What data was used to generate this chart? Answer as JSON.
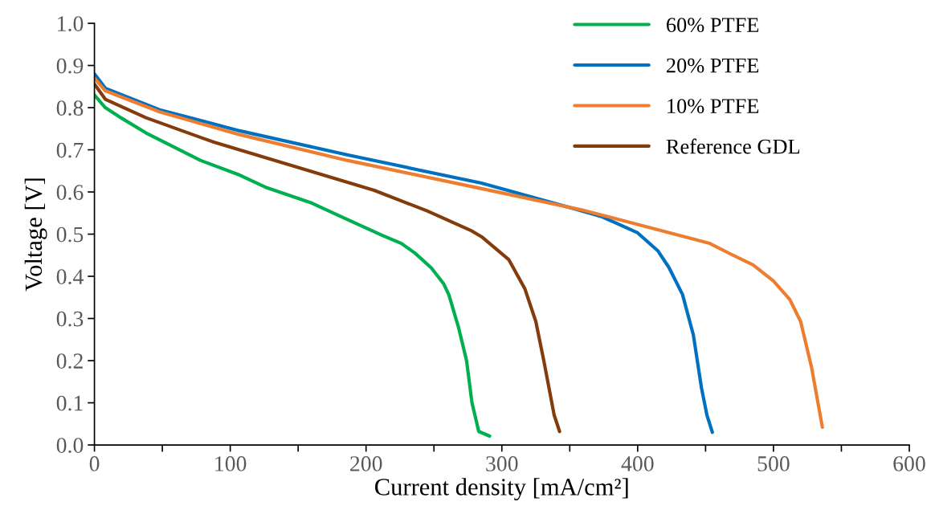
{
  "chart_data": {
    "type": "line",
    "xlabel": "Current density [mA/cm²]",
    "ylabel": "Voltage [V]",
    "xlim": [
      0,
      600
    ],
    "ylim": [
      0,
      1.0
    ],
    "xticks": [
      0,
      {
        "value": 50,
        "label": null
      },
      100,
      {
        "value": 150,
        "label": null
      },
      200,
      {
        "value": 250,
        "label": null
      },
      300,
      {
        "value": 350,
        "label": null
      },
      400,
      {
        "value": 450,
        "label": null
      },
      500,
      {
        "value": 550,
        "label": null
      },
      600
    ],
    "yticks": [
      {
        "value": 0,
        "label": "0.0"
      },
      0.1,
      0.2,
      0.3,
      0.4,
      0.5,
      0.6,
      0.7,
      0.8,
      0.9,
      {
        "value": 1.0,
        "label": "1.0"
      }
    ],
    "grid": false,
    "legend": "top right",
    "marker": "none",
    "line_style": "solid",
    "series": [
      {
        "name": "60% PTFE",
        "color": "#00b050",
        "x": [
          0,
          8,
          20,
          38,
          78,
          107,
          127,
          159,
          186,
          212,
          226,
          236,
          248,
          257,
          261,
          268,
          274,
          278,
          283,
          291
        ],
        "values": [
          0.83,
          0.8,
          0.775,
          0.74,
          0.675,
          0.64,
          0.61,
          0.575,
          0.535,
          0.497,
          0.478,
          0.455,
          0.42,
          0.383,
          0.356,
          0.28,
          0.2,
          0.1,
          0.032,
          0.021
        ]
      },
      {
        "name": "20% PTFE",
        "color": "#0070c0",
        "x": [
          0,
          8,
          48,
          107,
          186,
          285,
          358,
          374,
          400,
          415,
          423,
          433,
          441,
          447,
          451,
          455
        ],
        "values": [
          0.88,
          0.846,
          0.795,
          0.745,
          0.688,
          0.621,
          0.556,
          0.541,
          0.503,
          0.46,
          0.421,
          0.357,
          0.261,
          0.135,
          0.071,
          0.03
        ]
      },
      {
        "name": "10% PTFE",
        "color": "#ed7d31",
        "x": [
          0,
          8,
          48,
          107,
          186,
          285,
          358,
          374,
          453,
          469,
          485,
          500,
          512,
          520,
          528,
          536
        ],
        "values": [
          0.87,
          0.84,
          0.79,
          0.736,
          0.675,
          0.608,
          0.558,
          0.545,
          0.478,
          0.452,
          0.427,
          0.389,
          0.345,
          0.293,
          0.185,
          0.042
        ]
      },
      {
        "name": "Reference GDL",
        "color": "#843c0c",
        "x": [
          0,
          8,
          38,
          88,
          147,
          206,
          245,
          277,
          285,
          305,
          317,
          325,
          331,
          338.5,
          342.5
        ],
        "values": [
          0.856,
          0.82,
          0.776,
          0.718,
          0.661,
          0.604,
          0.555,
          0.509,
          0.494,
          0.44,
          0.37,
          0.293,
          0.198,
          0.071,
          0.032
        ]
      }
    ]
  }
}
